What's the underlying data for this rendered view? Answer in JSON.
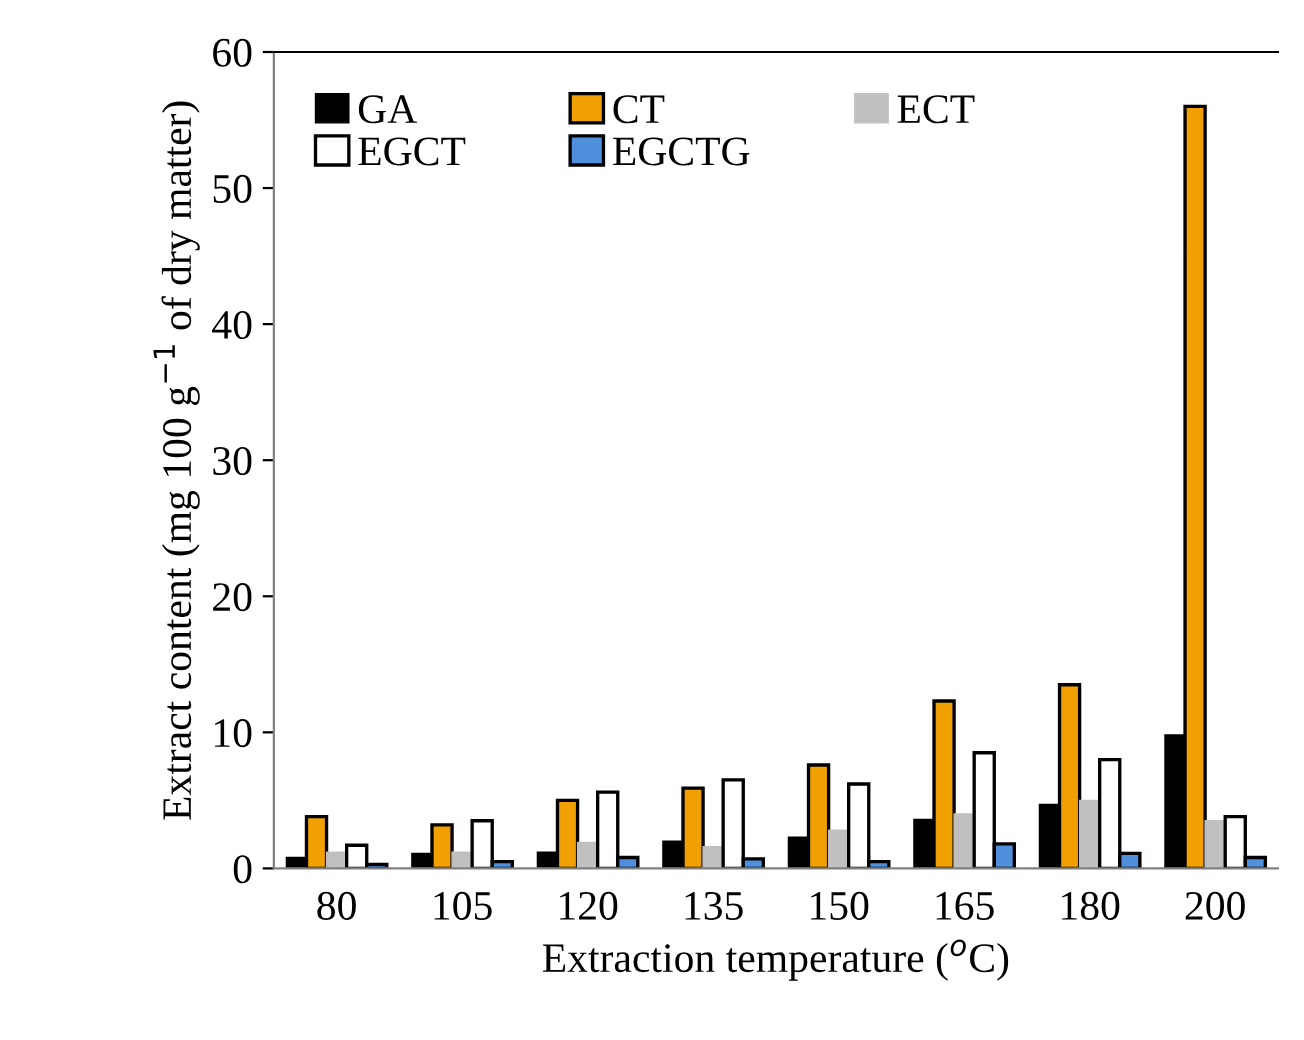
{
  "chart_data": {
    "type": "bar",
    "xlabel": "Extraction temperature ($^{o}$C)",
    "ylabel": "Extract content (mg 100 g$^{−1}$ of dry matter)",
    "categories": [
      "80",
      "105",
      "120",
      "135",
      "150",
      "165",
      "180",
      "200"
    ],
    "series": [
      {
        "name": "GA",
        "color": "#000000",
        "values": [
          0.8,
          1.1,
          1.2,
          2.0,
          2.3,
          3.6,
          4.7,
          9.8
        ]
      },
      {
        "name": "CT",
        "color": "#f0a000",
        "values": [
          3.8,
          3.2,
          5.0,
          5.9,
          7.6,
          12.3,
          13.5,
          56
        ]
      },
      {
        "name": "ECT",
        "color": "#c0c0c0",
        "values": [
          1.2,
          1.2,
          1.9,
          1.6,
          2.8,
          4.0,
          5.0,
          3.5
        ]
      },
      {
        "name": "EGCT",
        "color": "#ffffff",
        "values": [
          1.7,
          3.5,
          5.6,
          6.5,
          6.2,
          8.5,
          8.0,
          3.8
        ]
      },
      {
        "name": "EGCTG",
        "color": "#4f8fdc",
        "values": [
          0.3,
          0.5,
          0.8,
          0.7,
          0.5,
          1.8,
          1.1,
          0.8
        ]
      }
    ],
    "ylim": [
      0,
      60
    ],
    "yticks": [
      0,
      10,
      20,
      30,
      40,
      50,
      60
    ],
    "grid": false,
    "legend": "top left"
  }
}
